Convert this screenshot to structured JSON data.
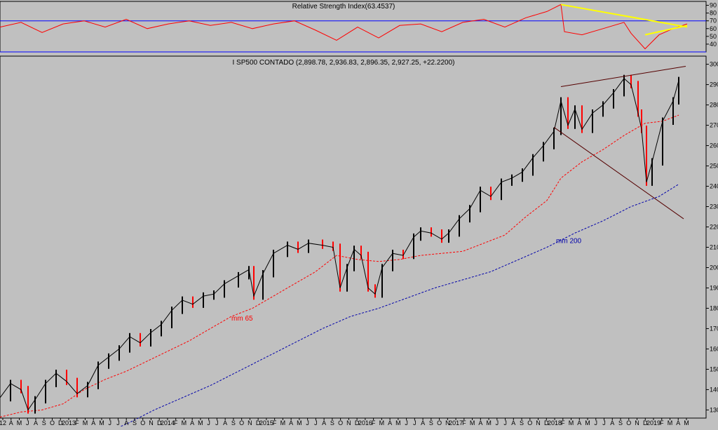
{
  "chart_data": [
    {
      "type": "line",
      "title": "Relative Strength Index(63.4537)",
      "y_ticks": [
        90,
        80,
        70,
        60,
        50,
        40
      ],
      "ylim": [
        30,
        95
      ],
      "reference_lines": [
        70,
        30
      ],
      "colors": {
        "rsi": "#ff0000",
        "reference": "#0000ff",
        "trendline": "#ffff00"
      },
      "series": [
        {
          "x": [
            0,
            30,
            60,
            90,
            120,
            150,
            180,
            210,
            240,
            270,
            300,
            330,
            360,
            390,
            420,
            450,
            480,
            510,
            540,
            570,
            600,
            630,
            660,
            690,
            720,
            750,
            780,
            800,
            805,
            830,
            860,
            890,
            900,
            920,
            940,
            960,
            980
          ],
          "values": [
            62,
            68,
            55,
            66,
            70,
            62,
            72,
            60,
            66,
            70,
            64,
            68,
            60,
            66,
            70,
            58,
            45,
            62,
            48,
            64,
            66,
            56,
            68,
            72,
            62,
            74,
            82,
            91,
            56,
            52,
            60,
            68,
            54,
            34,
            52,
            60,
            66
          ]
        }
      ],
      "trendlines": [
        {
          "x": [
            800,
            980
          ],
          "values": [
            91,
            62
          ]
        },
        {
          "x": [
            920,
            980
          ],
          "values": [
            52,
            64
          ]
        }
      ]
    },
    {
      "type": "line",
      "title": "I SP500 CONTADO (2,898.78, 2,936.83, 2,896.35, 2,927.25, +22.2200)",
      "y_ticks": [
        3000,
        2900,
        2800,
        2700,
        2600,
        2500,
        2400,
        2300,
        2200,
        2100,
        2000,
        1900,
        1800,
        1700,
        1600,
        1500,
        1400,
        1300
      ],
      "ylim": [
        1260,
        3040
      ],
      "x_tick_labels": [
        "12",
        "A",
        "M",
        "J",
        "A",
        "S",
        "O",
        "D",
        "2013",
        "F",
        "M",
        "A",
        "M",
        "J",
        "J",
        "A",
        "S",
        "O",
        "N",
        "D",
        "2014",
        "F",
        "M",
        "A",
        "M",
        "J",
        "J",
        "A",
        "S",
        "O",
        "N",
        "D",
        "2015",
        "F",
        "M",
        "A",
        "M",
        "J",
        "J",
        "A",
        "S",
        "O",
        "N",
        "D",
        "2016",
        "F",
        "M",
        "A",
        "M",
        "J",
        "J",
        "A",
        "S",
        "O",
        "N",
        "2017",
        "F",
        "M",
        "A",
        "M",
        "J",
        "J",
        "A",
        "S",
        "O",
        "N",
        "D",
        "2018",
        "F",
        "M",
        "A",
        "M",
        "J",
        "J",
        "A",
        "S",
        "O",
        "N",
        "D",
        "2019",
        "F",
        "M",
        "A",
        "M"
      ],
      "colors": {
        "price_up": "#000000",
        "price_down": "#ff0000",
        "mm65": "#ff0000",
        "mm200": "#0000aa",
        "trendline": "#550000"
      },
      "series": [
        {
          "name": "I SP500 CONTADO",
          "x": [
            0,
            15,
            30,
            40,
            50,
            65,
            80,
            95,
            110,
            125,
            140,
            155,
            170,
            185,
            200,
            215,
            230,
            245,
            260,
            275,
            290,
            305,
            320,
            340,
            355,
            362,
            375,
            390,
            410,
            425,
            440,
            460,
            475,
            485,
            495,
            505,
            515,
            525,
            535,
            545,
            560,
            575,
            590,
            600,
            615,
            630,
            640,
            655,
            670,
            685,
            700,
            715,
            730,
            745,
            760,
            775,
            790,
            800,
            810,
            820,
            830,
            845,
            860,
            875,
            890,
            900,
            910,
            915,
            922,
            930,
            945,
            960,
            968
          ],
          "values": [
            1360,
            1430,
            1400,
            1300,
            1350,
            1430,
            1480,
            1440,
            1380,
            1420,
            1520,
            1560,
            1600,
            1660,
            1630,
            1680,
            1720,
            1790,
            1840,
            1820,
            1860,
            1870,
            1920,
            1960,
            1990,
            1860,
            1970,
            2070,
            2110,
            2090,
            2120,
            2110,
            2100,
            1900,
            2000,
            2090,
            2060,
            1900,
            1870,
            2000,
            2070,
            2060,
            2150,
            2180,
            2170,
            2140,
            2170,
            2240,
            2290,
            2380,
            2350,
            2420,
            2440,
            2470,
            2540,
            2600,
            2670,
            2820,
            2700,
            2780,
            2680,
            2760,
            2800,
            2860,
            2930,
            2900,
            2760,
            2680,
            2420,
            2520,
            2720,
            2820,
            2920
          ]
        },
        {
          "name": "mm 65",
          "x": [
            0,
            30,
            60,
            90,
            120,
            150,
            180,
            210,
            240,
            270,
            300,
            330,
            360,
            390,
            420,
            450,
            480,
            510,
            540,
            570,
            600,
            630,
            660,
            690,
            720,
            750,
            780,
            800,
            830,
            860,
            890,
            920,
            945,
            968
          ],
          "values": [
            1265,
            1290,
            1300,
            1330,
            1400,
            1450,
            1490,
            1540,
            1590,
            1640,
            1700,
            1760,
            1800,
            1860,
            1920,
            1980,
            2060,
            2040,
            2030,
            2040,
            2060,
            2070,
            2080,
            2120,
            2160,
            2250,
            2330,
            2440,
            2520,
            2580,
            2650,
            2710,
            2720,
            2750
          ]
        },
        {
          "name": "mm 200",
          "x": [
            140,
            180,
            220,
            260,
            300,
            340,
            380,
            420,
            460,
            500,
            540,
            580,
            620,
            660,
            700,
            740,
            780,
            820,
            860,
            900,
            940,
            968
          ],
          "values": [
            1175,
            1230,
            1300,
            1360,
            1420,
            1490,
            1560,
            1630,
            1700,
            1760,
            1800,
            1850,
            1900,
            1940,
            1980,
            2040,
            2100,
            2170,
            2230,
            2300,
            2350,
            2410
          ]
        }
      ],
      "trendlines": [
        {
          "x": [
            800,
            978
          ],
          "values": [
            2890,
            2990
          ]
        },
        {
          "x": [
            790,
            975
          ],
          "values": [
            2690,
            2240
          ]
        }
      ],
      "annotations": [
        {
          "text": "mm 65",
          "x": 330,
          "value": 1740
        },
        {
          "text": "mm 200",
          "x": 793,
          "value": 2120
        }
      ]
    }
  ]
}
